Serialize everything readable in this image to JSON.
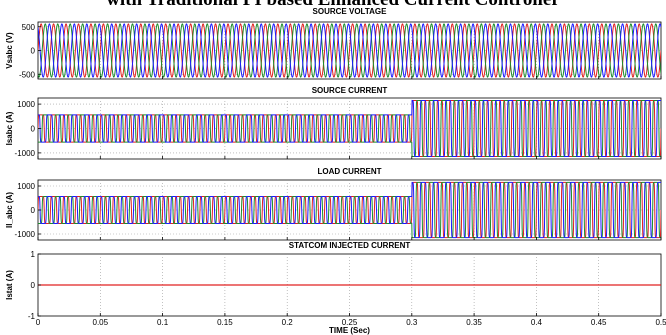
{
  "heading": "with Traditional PI based Enhanced Current Controller",
  "chart_data": [
    {
      "type": "line",
      "title": "SOURCE VOLTAGE",
      "ylabel": "Vsabc (V)",
      "xlim": [
        0,
        0.5
      ],
      "ylim": [
        -600,
        600
      ],
      "yticks": [
        -500,
        0,
        500
      ],
      "xticks": [
        0,
        0.05,
        0.1,
        0.15,
        0.2,
        0.25,
        0.3,
        0.35,
        0.4,
        0.45,
        0.5
      ],
      "grid": true,
      "waveform": "sine",
      "frequency_hz": 100,
      "series": [
        {
          "phase_deg": 0,
          "color": "#e02020",
          "segments": [
            {
              "t0": 0,
              "t1": 0.5,
              "amplitude": 560
            }
          ]
        },
        {
          "phase_deg": -120,
          "color": "#1c8c2c",
          "segments": [
            {
              "t0": 0,
              "t1": 0.5,
              "amplitude": 560
            }
          ]
        },
        {
          "phase_deg": 120,
          "color": "#1a1aff",
          "segments": [
            {
              "t0": 0,
              "t1": 0.5,
              "amplitude": 560
            }
          ]
        }
      ]
    },
    {
      "type": "line",
      "title": "SOURCE CURRENT",
      "ylabel": "Isabc (A)",
      "xlim": [
        0,
        0.5
      ],
      "ylim": [
        -1250,
        1250
      ],
      "yticks": [
        -1000,
        0,
        1000
      ],
      "xticks": [
        0,
        0.05,
        0.1,
        0.15,
        0.2,
        0.25,
        0.3,
        0.35,
        0.4,
        0.45,
        0.5
      ],
      "grid": true,
      "waveform": "square",
      "frequency_hz": 100,
      "series": [
        {
          "phase_deg": 0,
          "color": "#e02020",
          "segments": [
            {
              "t0": 0,
              "t1": 0.3,
              "amplitude": 560
            },
            {
              "t0": 0.3,
              "t1": 0.5,
              "amplitude": 1150
            }
          ]
        },
        {
          "phase_deg": -120,
          "color": "#1c8c2c",
          "segments": [
            {
              "t0": 0,
              "t1": 0.3,
              "amplitude": 560
            },
            {
              "t0": 0.3,
              "t1": 0.5,
              "amplitude": 1150
            }
          ]
        },
        {
          "phase_deg": 120,
          "color": "#1a1aff",
          "segments": [
            {
              "t0": 0,
              "t1": 0.3,
              "amplitude": 560
            },
            {
              "t0": 0.3,
              "t1": 0.5,
              "amplitude": 1150
            }
          ]
        }
      ]
    },
    {
      "type": "line",
      "title": "LOAD CURRENT",
      "ylabel": "Il_abc (A)",
      "xlim": [
        0,
        0.5
      ],
      "ylim": [
        -1250,
        1250
      ],
      "yticks": [
        -1000,
        0,
        1000
      ],
      "xticks": [
        0,
        0.05,
        0.1,
        0.15,
        0.2,
        0.25,
        0.3,
        0.35,
        0.4,
        0.45,
        0.5
      ],
      "grid": true,
      "waveform": "square",
      "frequency_hz": 100,
      "series": [
        {
          "phase_deg": 0,
          "color": "#e02020",
          "segments": [
            {
              "t0": 0,
              "t1": 0.3,
              "amplitude": 560
            },
            {
              "t0": 0.3,
              "t1": 0.5,
              "amplitude": 1150
            }
          ]
        },
        {
          "phase_deg": -120,
          "color": "#1c8c2c",
          "segments": [
            {
              "t0": 0,
              "t1": 0.3,
              "amplitude": 560
            },
            {
              "t0": 0.3,
              "t1": 0.5,
              "amplitude": 1150
            }
          ]
        },
        {
          "phase_deg": 120,
          "color": "#1a1aff",
          "segments": [
            {
              "t0": 0,
              "t1": 0.3,
              "amplitude": 560
            },
            {
              "t0": 0.3,
              "t1": 0.5,
              "amplitude": 1150
            }
          ]
        }
      ]
    },
    {
      "type": "line",
      "title": "STATCOM INJECTED CURRENT",
      "ylabel": "Istat (A)",
      "xlabel": "TIME (Sec)",
      "xlim": [
        0,
        0.5
      ],
      "ylim": [
        -1,
        1
      ],
      "yticks": [
        -1,
        0,
        1
      ],
      "xticks": [
        0,
        0.05,
        0.1,
        0.15,
        0.2,
        0.25,
        0.3,
        0.35,
        0.4,
        0.45,
        0.5
      ],
      "xticklabels": [
        "0",
        "0.05",
        "0.1",
        "0.15",
        "0.2",
        "0.25",
        "0.3",
        "0.35",
        "0.4",
        "0.45",
        "0.5"
      ],
      "grid": true,
      "waveform": "constant",
      "series": [
        {
          "color": "#e02020",
          "segments": [
            {
              "t0": 0,
              "t1": 0.5,
              "amplitude": 0
            }
          ]
        }
      ]
    }
  ]
}
